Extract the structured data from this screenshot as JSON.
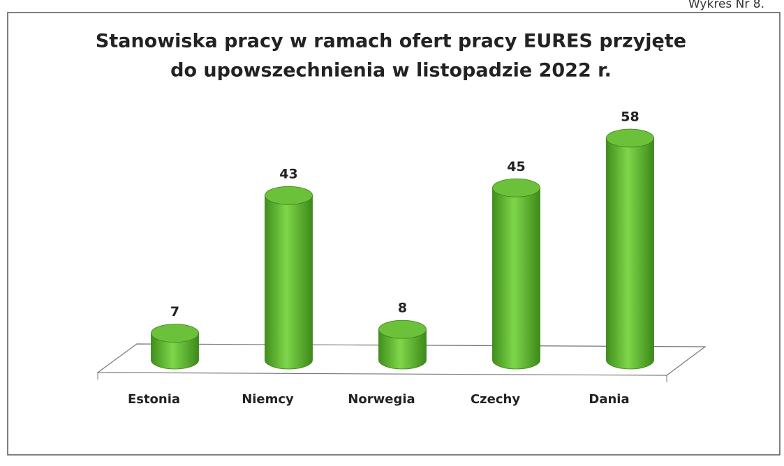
{
  "page_label": "Wykres Nr 8.",
  "chart_data": {
    "type": "bar3d",
    "title": [
      "Stanowiska pracy w ramach ofert pracy EURES przyjęte",
      "do upowszechnienia w listopadzie 2022 r."
    ],
    "categories": [
      "Estonia",
      "Niemcy",
      "Norwegia",
      "Czechy",
      "Dania"
    ],
    "values": [
      7,
      43,
      8,
      45,
      58
    ],
    "color": "#6cc13a"
  }
}
